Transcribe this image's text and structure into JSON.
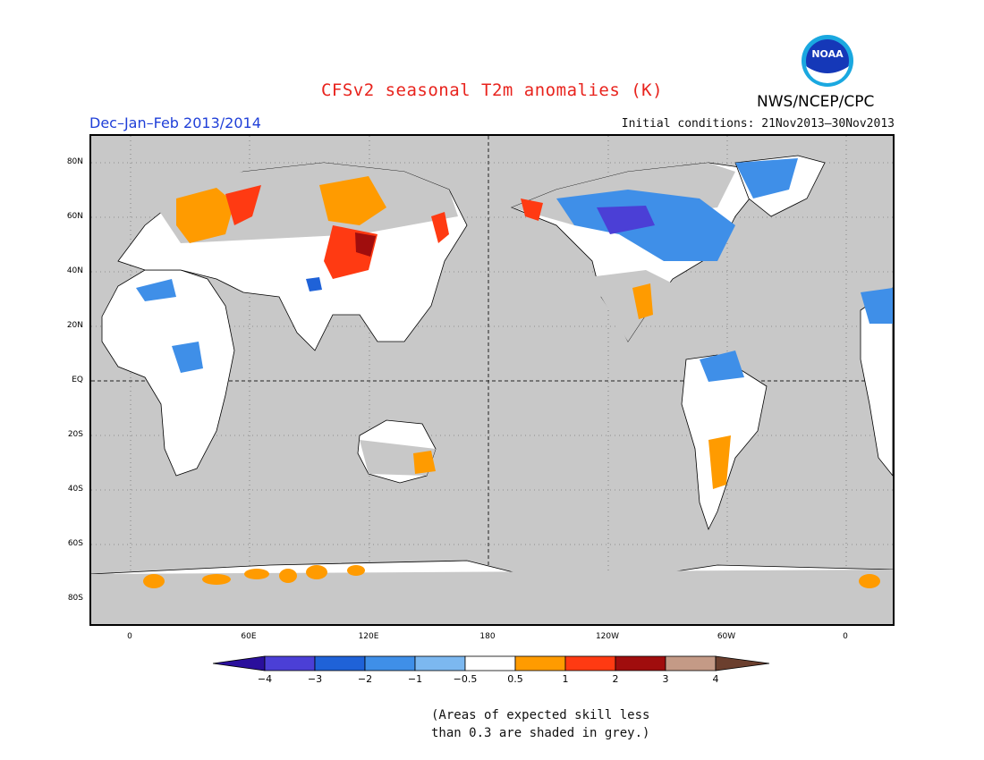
{
  "title": "CFSv2 seasonal T2m anomalies (K)",
  "subtitle": "Dec–Jan–Feb 2013/2014",
  "initial_conditions": "Initial conditions: 21Nov2013–30Nov2013",
  "agency": "NWS/NCEP/CPC",
  "logo_text": "NOAA",
  "lat_labels": [
    "80N",
    "60N",
    "40N",
    "20N",
    "EQ",
    "20S",
    "40S",
    "60S",
    "80S"
  ],
  "lon_labels": [
    "0",
    "60E",
    "120E",
    "180",
    "120W",
    "60W",
    "0"
  ],
  "colorbar": {
    "labels": [
      "−4",
      "−3",
      "−2",
      "−1",
      "−0.5",
      "0.5",
      "1",
      "2",
      "3",
      "4"
    ],
    "colors": [
      "#2a0f9c",
      "#4b3fd6",
      "#1f62d8",
      "#3f8fe8",
      "#7cb8f0",
      "#ffffff",
      "#ff9b00",
      "#ff3a12",
      "#a00d0d",
      "#c49a86",
      "#6b3f2e"
    ]
  },
  "note_line1": "(Areas of expected skill less",
  "note_line2": "than 0.3 are shaded in grey.)",
  "colors": {
    "grey_mask": "#c8c8c8",
    "title": "#e8231d",
    "subtitle": "#1f3fd8"
  }
}
